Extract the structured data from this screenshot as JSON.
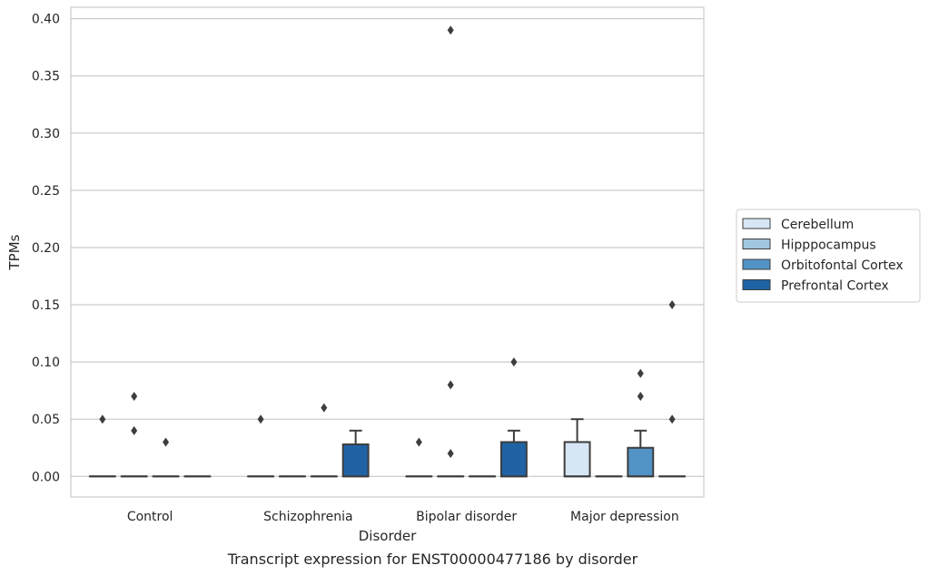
{
  "chart_data": {
    "type": "box",
    "caption": "Transcript expression for ENST00000477186 by disorder",
    "xlabel": "Disorder",
    "ylabel": "TPMs",
    "ylim": [
      -0.018,
      0.41
    ],
    "yticks": [
      0.0,
      0.05,
      0.1,
      0.15,
      0.2,
      0.25,
      0.3,
      0.35,
      0.4
    ],
    "ytick_labels": [
      "0.00",
      "0.05",
      "0.10",
      "0.15",
      "0.20",
      "0.25",
      "0.30",
      "0.35",
      "0.40"
    ],
    "grid": true,
    "legend_position": "right",
    "categories": [
      "Control",
      "Schizophrenia",
      "Bipolar disorder",
      "Major depression"
    ],
    "series": [
      {
        "name": "Cerebellum",
        "color": "#d6e6f4",
        "boxes": [
          {
            "q1": 0,
            "median": 0,
            "q3": 0,
            "whisker_low": 0,
            "whisker_high": 0,
            "outliers": [
              0.05
            ]
          },
          {
            "q1": 0,
            "median": 0,
            "q3": 0,
            "whisker_low": 0,
            "whisker_high": 0,
            "outliers": [
              0.05
            ]
          },
          {
            "q1": 0,
            "median": 0,
            "q3": 0,
            "whisker_low": 0,
            "whisker_high": 0,
            "outliers": [
              0.03
            ]
          },
          {
            "q1": 0,
            "median": 0,
            "q3": 0.03,
            "whisker_low": 0,
            "whisker_high": 0.05,
            "outliers": []
          }
        ]
      },
      {
        "name": "Hipppocampus",
        "color": "#a0c6e0",
        "boxes": [
          {
            "q1": 0,
            "median": 0,
            "q3": 0,
            "whisker_low": 0,
            "whisker_high": 0,
            "outliers": [
              0.07,
              0.04
            ]
          },
          {
            "q1": 0,
            "median": 0,
            "q3": 0,
            "whisker_low": 0,
            "whisker_high": 0,
            "outliers": []
          },
          {
            "q1": 0,
            "median": 0,
            "q3": 0,
            "whisker_low": 0,
            "whisker_high": 0,
            "outliers": [
              0.39,
              0.08,
              0.02
            ]
          },
          {
            "q1": 0,
            "median": 0,
            "q3": 0,
            "whisker_low": 0,
            "whisker_high": 0,
            "outliers": []
          }
        ]
      },
      {
        "name": "Orbitofontal Cortex",
        "color": "#5293c6",
        "boxes": [
          {
            "q1": 0,
            "median": 0,
            "q3": 0,
            "whisker_low": 0,
            "whisker_high": 0,
            "outliers": [
              0.03
            ]
          },
          {
            "q1": 0,
            "median": 0,
            "q3": 0,
            "whisker_low": 0,
            "whisker_high": 0,
            "outliers": [
              0.06
            ]
          },
          {
            "q1": 0,
            "median": 0,
            "q3": 0,
            "whisker_low": 0,
            "whisker_high": 0,
            "outliers": []
          },
          {
            "q1": 0,
            "median": 0,
            "q3": 0.025,
            "whisker_low": 0,
            "whisker_high": 0.04,
            "outliers": [
              0.09,
              0.07
            ]
          }
        ]
      },
      {
        "name": "Prefrontal Cortex",
        "color": "#2063a5",
        "boxes": [
          {
            "q1": 0,
            "median": 0,
            "q3": 0,
            "whisker_low": 0,
            "whisker_high": 0,
            "outliers": []
          },
          {
            "q1": 0,
            "median": 0,
            "q3": 0.028,
            "whisker_low": 0,
            "whisker_high": 0.04,
            "outliers": []
          },
          {
            "q1": 0,
            "median": 0,
            "q3": 0.03,
            "whisker_low": 0,
            "whisker_high": 0.04,
            "outliers": [
              0.1
            ]
          },
          {
            "q1": 0,
            "median": 0,
            "q3": 0,
            "whisker_low": 0,
            "whisker_high": 0,
            "outliers": [
              0.15,
              0.05
            ]
          }
        ]
      }
    ]
  }
}
